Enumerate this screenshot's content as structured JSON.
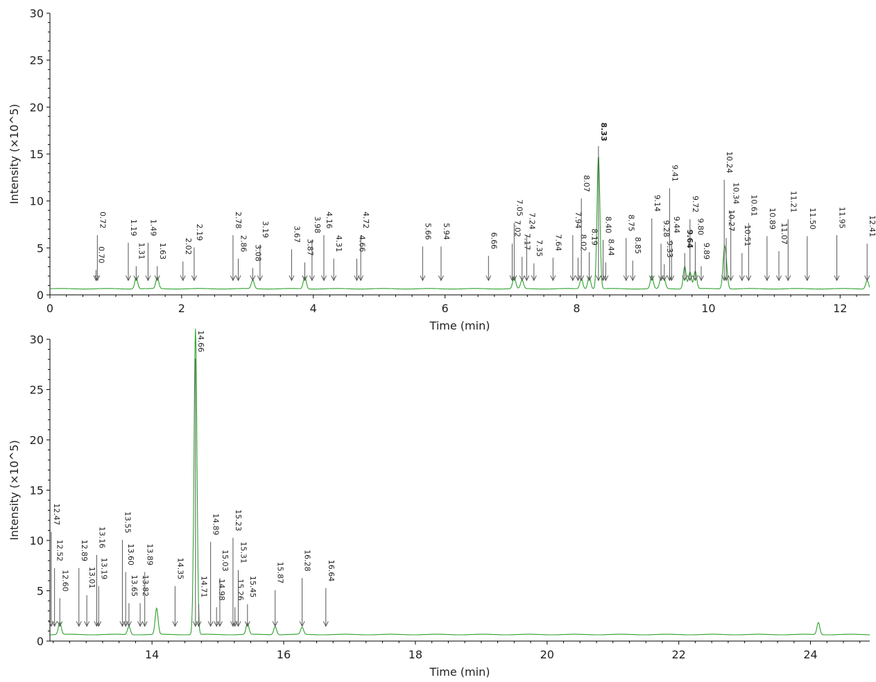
{
  "chart_data": [
    {
      "type": "line",
      "xlabel": "Time (min)",
      "ylabel": "Intensity (×10^5)",
      "xlim": [
        0,
        12.45
      ],
      "ylim": [
        0,
        30
      ],
      "xticks": [
        0,
        2,
        4,
        6,
        8,
        10,
        12
      ],
      "yticks": [
        0,
        5,
        10,
        15,
        20,
        25,
        30
      ],
      "series_color": "#2ca02c",
      "baseline": 0.65,
      "peaks": [
        {
          "t": 1.31,
          "h": 1.2
        },
        {
          "t": 1.63,
          "h": 1.2
        },
        {
          "t": 3.08,
          "h": 0.9
        },
        {
          "t": 3.87,
          "h": 1.3
        },
        {
          "t": 7.05,
          "h": 1.3
        },
        {
          "t": 7.17,
          "h": 0.9
        },
        {
          "t": 8.07,
          "h": 1.1
        },
        {
          "t": 8.19,
          "h": 1.3
        },
        {
          "t": 8.33,
          "h": 14.2
        },
        {
          "t": 9.14,
          "h": 1.4
        },
        {
          "t": 9.28,
          "h": 1.1
        },
        {
          "t": 9.33,
          "h": 0.9
        },
        {
          "t": 9.64,
          "h": 2.4
        },
        {
          "t": 9.72,
          "h": 1.8
        },
        {
          "t": 9.8,
          "h": 1.9
        },
        {
          "t": 10.24,
          "h": 3.6
        },
        {
          "t": 10.27,
          "h": 2.0
        },
        {
          "t": 12.41,
          "h": 0.9
        }
      ],
      "labels": [
        {
          "text": "0.72",
          "t": 0.72,
          "top": 6.5
        },
        {
          "text": "0.70",
          "t": 0.7,
          "top": 2.8
        },
        {
          "text": "1.19",
          "t": 1.19,
          "top": 5.7
        },
        {
          "text": "1.31",
          "t": 1.31,
          "top": 3.2
        },
        {
          "text": "1.49",
          "t": 1.49,
          "top": 5.7
        },
        {
          "text": "1.63",
          "t": 1.63,
          "top": 3.2
        },
        {
          "text": "2.02",
          "t": 2.02,
          "top": 3.7
        },
        {
          "text": "2.19",
          "t": 2.19,
          "top": 5.2
        },
        {
          "text": "2.78",
          "t": 2.78,
          "top": 6.5
        },
        {
          "text": "2.86",
          "t": 2.86,
          "top": 4.0
        },
        {
          "text": "3.08",
          "t": 3.08,
          "top": 3.0
        },
        {
          "text": "3.19",
          "t": 3.19,
          "top": 5.5
        },
        {
          "text": "3.67",
          "t": 3.67,
          "top": 5.0
        },
        {
          "text": "3.87",
          "t": 3.87,
          "top": 3.6
        },
        {
          "text": "3.98",
          "t": 3.98,
          "top": 6.0
        },
        {
          "text": "4.16",
          "t": 4.16,
          "top": 6.5
        },
        {
          "text": "4.31",
          "t": 4.31,
          "top": 4.0
        },
        {
          "text": "4.66",
          "t": 4.66,
          "top": 4.0
        },
        {
          "text": "4.72",
          "t": 4.72,
          "top": 6.5
        },
        {
          "text": "5.66",
          "t": 5.66,
          "top": 5.3
        },
        {
          "text": "5.94",
          "t": 5.94,
          "top": 5.3
        },
        {
          "text": "6.66",
          "t": 6.66,
          "top": 4.3
        },
        {
          "text": "7.05",
          "t": 7.05,
          "top": 7.8
        },
        {
          "text": "7.02",
          "t": 7.02,
          "top": 5.6
        },
        {
          "text": "7.17",
          "t": 7.17,
          "top": 4.2
        },
        {
          "text": "7.24",
          "t": 7.24,
          "top": 6.4
        },
        {
          "text": "7.35",
          "t": 7.35,
          "top": 3.5
        },
        {
          "text": "7.64",
          "t": 7.64,
          "top": 4.1
        },
        {
          "text": "7.94",
          "t": 7.94,
          "top": 6.5
        },
        {
          "text": "8.02",
          "t": 8.02,
          "top": 4.1
        },
        {
          "text": "8.07",
          "t": 8.07,
          "top": 10.4
        },
        {
          "text": "8.19",
          "t": 8.19,
          "top": 4.7
        },
        {
          "text": "8.33",
          "t": 8.33,
          "top": 16.0,
          "bold": true
        },
        {
          "text": "8.40",
          "t": 8.4,
          "top": 6.0
        },
        {
          "text": "8.44",
          "t": 8.44,
          "top": 3.6
        },
        {
          "text": "8.75",
          "t": 8.75,
          "top": 6.2
        },
        {
          "text": "8.85",
          "t": 8.85,
          "top": 3.8
        },
        {
          "text": "9.14",
          "t": 9.14,
          "top": 8.3
        },
        {
          "text": "9.28",
          "t": 9.28,
          "top": 5.6
        },
        {
          "text": "9.33",
          "t": 9.33,
          "top": 3.4
        },
        {
          "text": "9.41",
          "t": 9.41,
          "top": 11.5
        },
        {
          "text": "9.44",
          "t": 9.44,
          "top": 6.0
        },
        {
          "text": "9.64",
          "t": 9.64,
          "top": 4.6,
          "bold": true
        },
        {
          "text": "9.72",
          "t": 9.72,
          "top": 8.2
        },
        {
          "text": "9.80",
          "t": 9.8,
          "top": 5.8
        },
        {
          "text": "9.89",
          "t": 9.89,
          "top": 3.2
        },
        {
          "text": "10.24",
          "t": 10.24,
          "top": 12.4
        },
        {
          "text": "10.34",
          "t": 10.34,
          "top": 9.1
        },
        {
          "text": "10.27",
          "t": 10.27,
          "top": 6.2
        },
        {
          "text": "10.51",
          "t": 10.51,
          "top": 4.6
        },
        {
          "text": "10.61",
          "t": 10.61,
          "top": 7.8
        },
        {
          "text": "10.89",
          "t": 10.89,
          "top": 6.4
        },
        {
          "text": "11.07",
          "t": 11.07,
          "top": 4.8
        },
        {
          "text": "11.21",
          "t": 11.21,
          "top": 8.2
        },
        {
          "text": "11.50",
          "t": 11.5,
          "top": 6.4
        },
        {
          "text": "11.95",
          "t": 11.95,
          "top": 6.5
        },
        {
          "text": "12.41",
          "t": 12.41,
          "top": 5.6
        }
      ]
    },
    {
      "type": "line",
      "xlabel": "Time (min)",
      "ylabel": "Intensity (×10^5)",
      "xlim": [
        12.45,
        24.9
      ],
      "ylim": [
        0,
        30
      ],
      "xticks": [
        14,
        16,
        18,
        20,
        22,
        24
      ],
      "yticks": [
        0,
        5,
        10,
        15,
        20,
        25,
        30
      ],
      "series_color": "#2ca02c",
      "baseline": 0.65,
      "peaks": [
        {
          "t": 12.6,
          "h": 1.2
        },
        {
          "t": 13.65,
          "h": 0.8
        },
        {
          "t": 14.07,
          "h": 2.6
        },
        {
          "t": 14.66,
          "h": 30.4
        },
        {
          "t": 15.45,
          "h": 1.1
        },
        {
          "t": 15.87,
          "h": 0.8
        },
        {
          "t": 16.28,
          "h": 0.7
        },
        {
          "t": 24.12,
          "h": 1.2
        }
      ],
      "labels": [
        {
          "text": "12.47",
          "t": 12.47,
          "top": 11.0
        },
        {
          "text": "12.52",
          "t": 12.52,
          "top": 7.4
        },
        {
          "text": "12.60",
          "t": 12.6,
          "top": 4.4
        },
        {
          "text": "12.89",
          "t": 12.89,
          "top": 7.4
        },
        {
          "text": "13.01",
          "t": 13.01,
          "top": 4.7
        },
        {
          "text": "13.16",
          "t": 13.16,
          "top": 8.7
        },
        {
          "text": "13.19",
          "t": 13.19,
          "top": 5.6
        },
        {
          "text": "13.55",
          "t": 13.55,
          "top": 10.2
        },
        {
          "text": "13.60",
          "t": 13.6,
          "top": 7.0
        },
        {
          "text": "13.65",
          "t": 13.65,
          "top": 3.9
        },
        {
          "text": "13.82",
          "t": 13.82,
          "top": 3.9
        },
        {
          "text": "13.89",
          "t": 13.89,
          "top": 7.0
        },
        {
          "text": "14.35",
          "t": 14.35,
          "top": 5.6
        },
        {
          "text": "14.66",
          "t": 14.66,
          "top": 28.2
        },
        {
          "text": "14.71",
          "t": 14.71,
          "top": 3.8
        },
        {
          "text": "14.89",
          "t": 14.89,
          "top": 10.0
        },
        {
          "text": "14.98",
          "t": 14.98,
          "top": 3.5
        },
        {
          "text": "15.03",
          "t": 15.03,
          "top": 6.4
        },
        {
          "text": "15.23",
          "t": 15.23,
          "top": 10.4
        },
        {
          "text": "15.26",
          "t": 15.26,
          "top": 3.5
        },
        {
          "text": "15.31",
          "t": 15.31,
          "top": 7.2
        },
        {
          "text": "15.45",
          "t": 15.45,
          "top": 3.8
        },
        {
          "text": "15.87",
          "t": 15.87,
          "top": 5.2
        },
        {
          "text": "16.28",
          "t": 16.28,
          "top": 6.4
        },
        {
          "text": "16.64",
          "t": 16.64,
          "top": 5.4
        }
      ]
    }
  ]
}
